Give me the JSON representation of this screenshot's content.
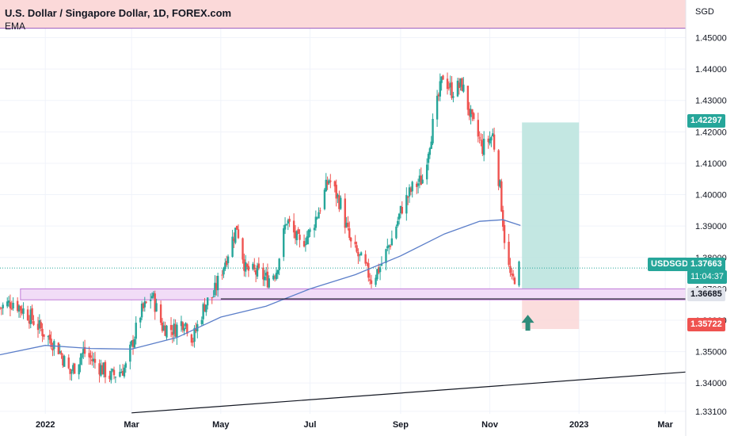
{
  "header": {
    "title": "U.S. Dollar / Singapore Dollar, 1D, FOREX.com",
    "indicator": "EMA"
  },
  "axis_unit": "SGD",
  "colors": {
    "up": "#26a69a",
    "down": "#ef5350",
    "ema": "#5b7ec9",
    "support_zone": "#c07ad8",
    "target_zone": "#b9e3dd",
    "stop_zone": "#fbd9d9",
    "top_band": "#fbd9d9",
    "top_line": "#9c5cbf",
    "price_line": "#26a69a",
    "trendline": "#131722",
    "arrow": "#2e8b7a"
  },
  "badges": {
    "target": "1.42297",
    "symbol": "USDSGD",
    "price": "1.37663",
    "countdown": "11:04:37",
    "support": "1.36685",
    "stop": "1.35722"
  },
  "chart_data": {
    "type": "candlestick",
    "title": "U.S. Dollar / Singapore Dollar, 1D, FOREX.com",
    "ylim": [
      1.3302,
      1.462
    ],
    "yticks": [
      {
        "value": 1.45,
        "label": "1.45000"
      },
      {
        "value": 1.44,
        "label": "1.44000"
      },
      {
        "value": 1.43,
        "label": "1.43000"
      },
      {
        "value": 1.42,
        "label": "1.42000"
      },
      {
        "value": 1.41,
        "label": "1.41000"
      },
      {
        "value": 1.4,
        "label": "1.40000"
      },
      {
        "value": 1.39,
        "label": "1.39000"
      },
      {
        "value": 1.38,
        "label": "1.38000"
      },
      {
        "value": 1.37,
        "label": "1.37000"
      },
      {
        "value": 1.36,
        "label": "1.36000"
      },
      {
        "value": 1.35,
        "label": "1.35000"
      },
      {
        "value": 1.34,
        "label": "1.34000"
      },
      {
        "value": 1.331,
        "label": "1.33100"
      }
    ],
    "x_date_range": [
      "2021-12-01",
      "2023-03-15"
    ],
    "xticks": [
      {
        "date": "2022-01-01",
        "label": "2022"
      },
      {
        "date": "2022-03-01",
        "label": "Mar"
      },
      {
        "date": "2022-05-01",
        "label": "May"
      },
      {
        "date": "2022-07-01",
        "label": "Jul"
      },
      {
        "date": "2022-09-01",
        "label": "Sep"
      },
      {
        "date": "2022-11-01",
        "label": "Nov"
      },
      {
        "date": "2023-01-01",
        "label": "2023"
      },
      {
        "date": "2023-03-01",
        "label": "Mar"
      }
    ],
    "grid": true,
    "close_path": [
      [
        "2021-12-01",
        1.364
      ],
      [
        "2021-12-10",
        1.366
      ],
      [
        "2021-12-20",
        1.362
      ],
      [
        "2021-12-31",
        1.356
      ],
      [
        "2022-01-10",
        1.351
      ],
      [
        "2022-01-18",
        1.343
      ],
      [
        "2022-01-27",
        1.35
      ],
      [
        "2022-02-05",
        1.346
      ],
      [
        "2022-02-15",
        1.342
      ],
      [
        "2022-02-25",
        1.345
      ],
      [
        "2022-03-07",
        1.362
      ],
      [
        "2022-03-15",
        1.368
      ],
      [
        "2022-03-22",
        1.358
      ],
      [
        "2022-03-30",
        1.357
      ],
      [
        "2022-04-06",
        1.36
      ],
      [
        "2022-04-12",
        1.354
      ],
      [
        "2022-04-20",
        1.365
      ],
      [
        "2022-04-26",
        1.368
      ],
      [
        "2022-05-04",
        1.379
      ],
      [
        "2022-05-12",
        1.39
      ],
      [
        "2022-05-18",
        1.376
      ],
      [
        "2022-05-26",
        1.375
      ],
      [
        "2022-06-02",
        1.373
      ],
      [
        "2022-06-08",
        1.376
      ],
      [
        "2022-06-15",
        1.392
      ],
      [
        "2022-06-24",
        1.384
      ],
      [
        "2022-07-01",
        1.388
      ],
      [
        "2022-07-07",
        1.395
      ],
      [
        "2022-07-14",
        1.405
      ],
      [
        "2022-07-22",
        1.397
      ],
      [
        "2022-07-29",
        1.384
      ],
      [
        "2022-08-05",
        1.379
      ],
      [
        "2022-08-12",
        1.373
      ],
      [
        "2022-08-18",
        1.377
      ],
      [
        "2022-08-26",
        1.386
      ],
      [
        "2022-09-02",
        1.396
      ],
      [
        "2022-09-09",
        1.402
      ],
      [
        "2022-09-16",
        1.405
      ],
      [
        "2022-09-23",
        1.422
      ],
      [
        "2022-09-30",
        1.438
      ],
      [
        "2022-10-06",
        1.433
      ],
      [
        "2022-10-13",
        1.435
      ],
      [
        "2022-10-20",
        1.423
      ],
      [
        "2022-10-27",
        1.415
      ],
      [
        "2022-11-03",
        1.419
      ],
      [
        "2022-11-08",
        1.402
      ],
      [
        "2022-11-12",
        1.381
      ],
      [
        "2022-11-16",
        1.372
      ],
      [
        "2022-11-21",
        1.3766
      ]
    ],
    "ema_path": [
      [
        "2021-12-01",
        1.349
      ],
      [
        "2022-01-01",
        1.352
      ],
      [
        "2022-02-01",
        1.351
      ],
      [
        "2022-03-01",
        1.3508
      ],
      [
        "2022-04-01",
        1.3545
      ],
      [
        "2022-05-01",
        1.361
      ],
      [
        "2022-06-01",
        1.3645
      ],
      [
        "2022-07-01",
        1.37
      ],
      [
        "2022-08-01",
        1.3745
      ],
      [
        "2022-09-01",
        1.3805
      ],
      [
        "2022-10-01",
        1.3875
      ],
      [
        "2022-10-25",
        1.3915
      ],
      [
        "2022-11-10",
        1.392
      ],
      [
        "2022-11-22",
        1.3902
      ]
    ],
    "annotations": {
      "support_zone": {
        "from": "2021-12-15",
        "to": "2023-03-15",
        "low": 1.3665,
        "high": 1.37
      },
      "support_line": {
        "from": "2022-05-01",
        "to": "2023-03-15",
        "value": 1.3668
      },
      "trendline": {
        "from": [
          "2022-03-01",
          1.3305
        ],
        "to": [
          "2023-03-15",
          1.3435
        ]
      },
      "top_band": {
        "low": 1.453,
        "high": 1.464
      },
      "long_position": {
        "from": "2022-11-23",
        "to": "2023-01-01",
        "entry": 1.3668,
        "target": 1.423,
        "stop": 1.3572
      },
      "last_price": 1.37663
    }
  }
}
